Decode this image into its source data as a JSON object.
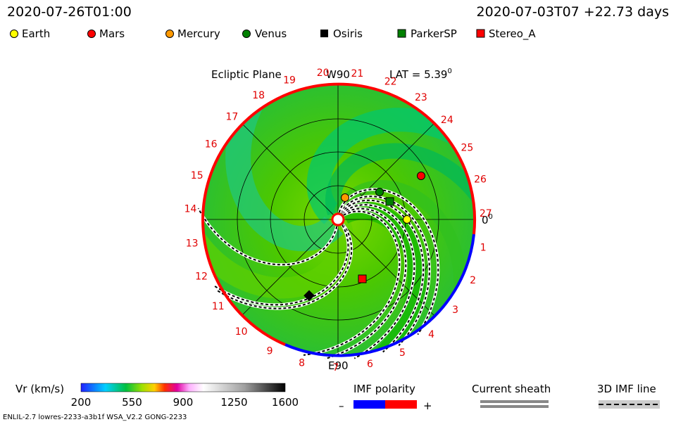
{
  "header": {
    "time": "2020-07-26T01:00",
    "reference": "2020-07-03T07 +22.73 days"
  },
  "legend": [
    {
      "label": "Earth"
    },
    {
      "label": "Mars"
    },
    {
      "label": "Mercury"
    },
    {
      "label": "Venus"
    },
    {
      "label": "Osiris"
    },
    {
      "label": "ParkerSP"
    },
    {
      "label": "Stereo_A"
    }
  ],
  "plot": {
    "title": "Ecliptic Plane",
    "top_label": "W90",
    "lat_label": "LAT = 5.39",
    "lat_sup": "0",
    "bottom_label": "E90",
    "right_label": "0",
    "right_sup": "0",
    "longitudes": [
      "1",
      "2",
      "3",
      "4",
      "5",
      "6",
      "7",
      "8",
      "9",
      "10",
      "11",
      "12",
      "13",
      "14",
      "15",
      "16",
      "17",
      "18",
      "19",
      "20",
      "21",
      "22",
      "23",
      "24",
      "25",
      "26",
      "27"
    ]
  },
  "colorbar": {
    "title": "Vr (km/s)",
    "ticks": [
      200,
      550,
      900,
      1250,
      1600
    ]
  },
  "imf": {
    "title": "IMF polarity",
    "minus": "–",
    "plus": "+"
  },
  "sheath": {
    "title": "Current sheath"
  },
  "imf_line": {
    "title": "3D IMF line"
  },
  "footer": "ENLIL-2.7 lowres-2233-a3b1f WSA_V2.2 GONG-2233"
}
